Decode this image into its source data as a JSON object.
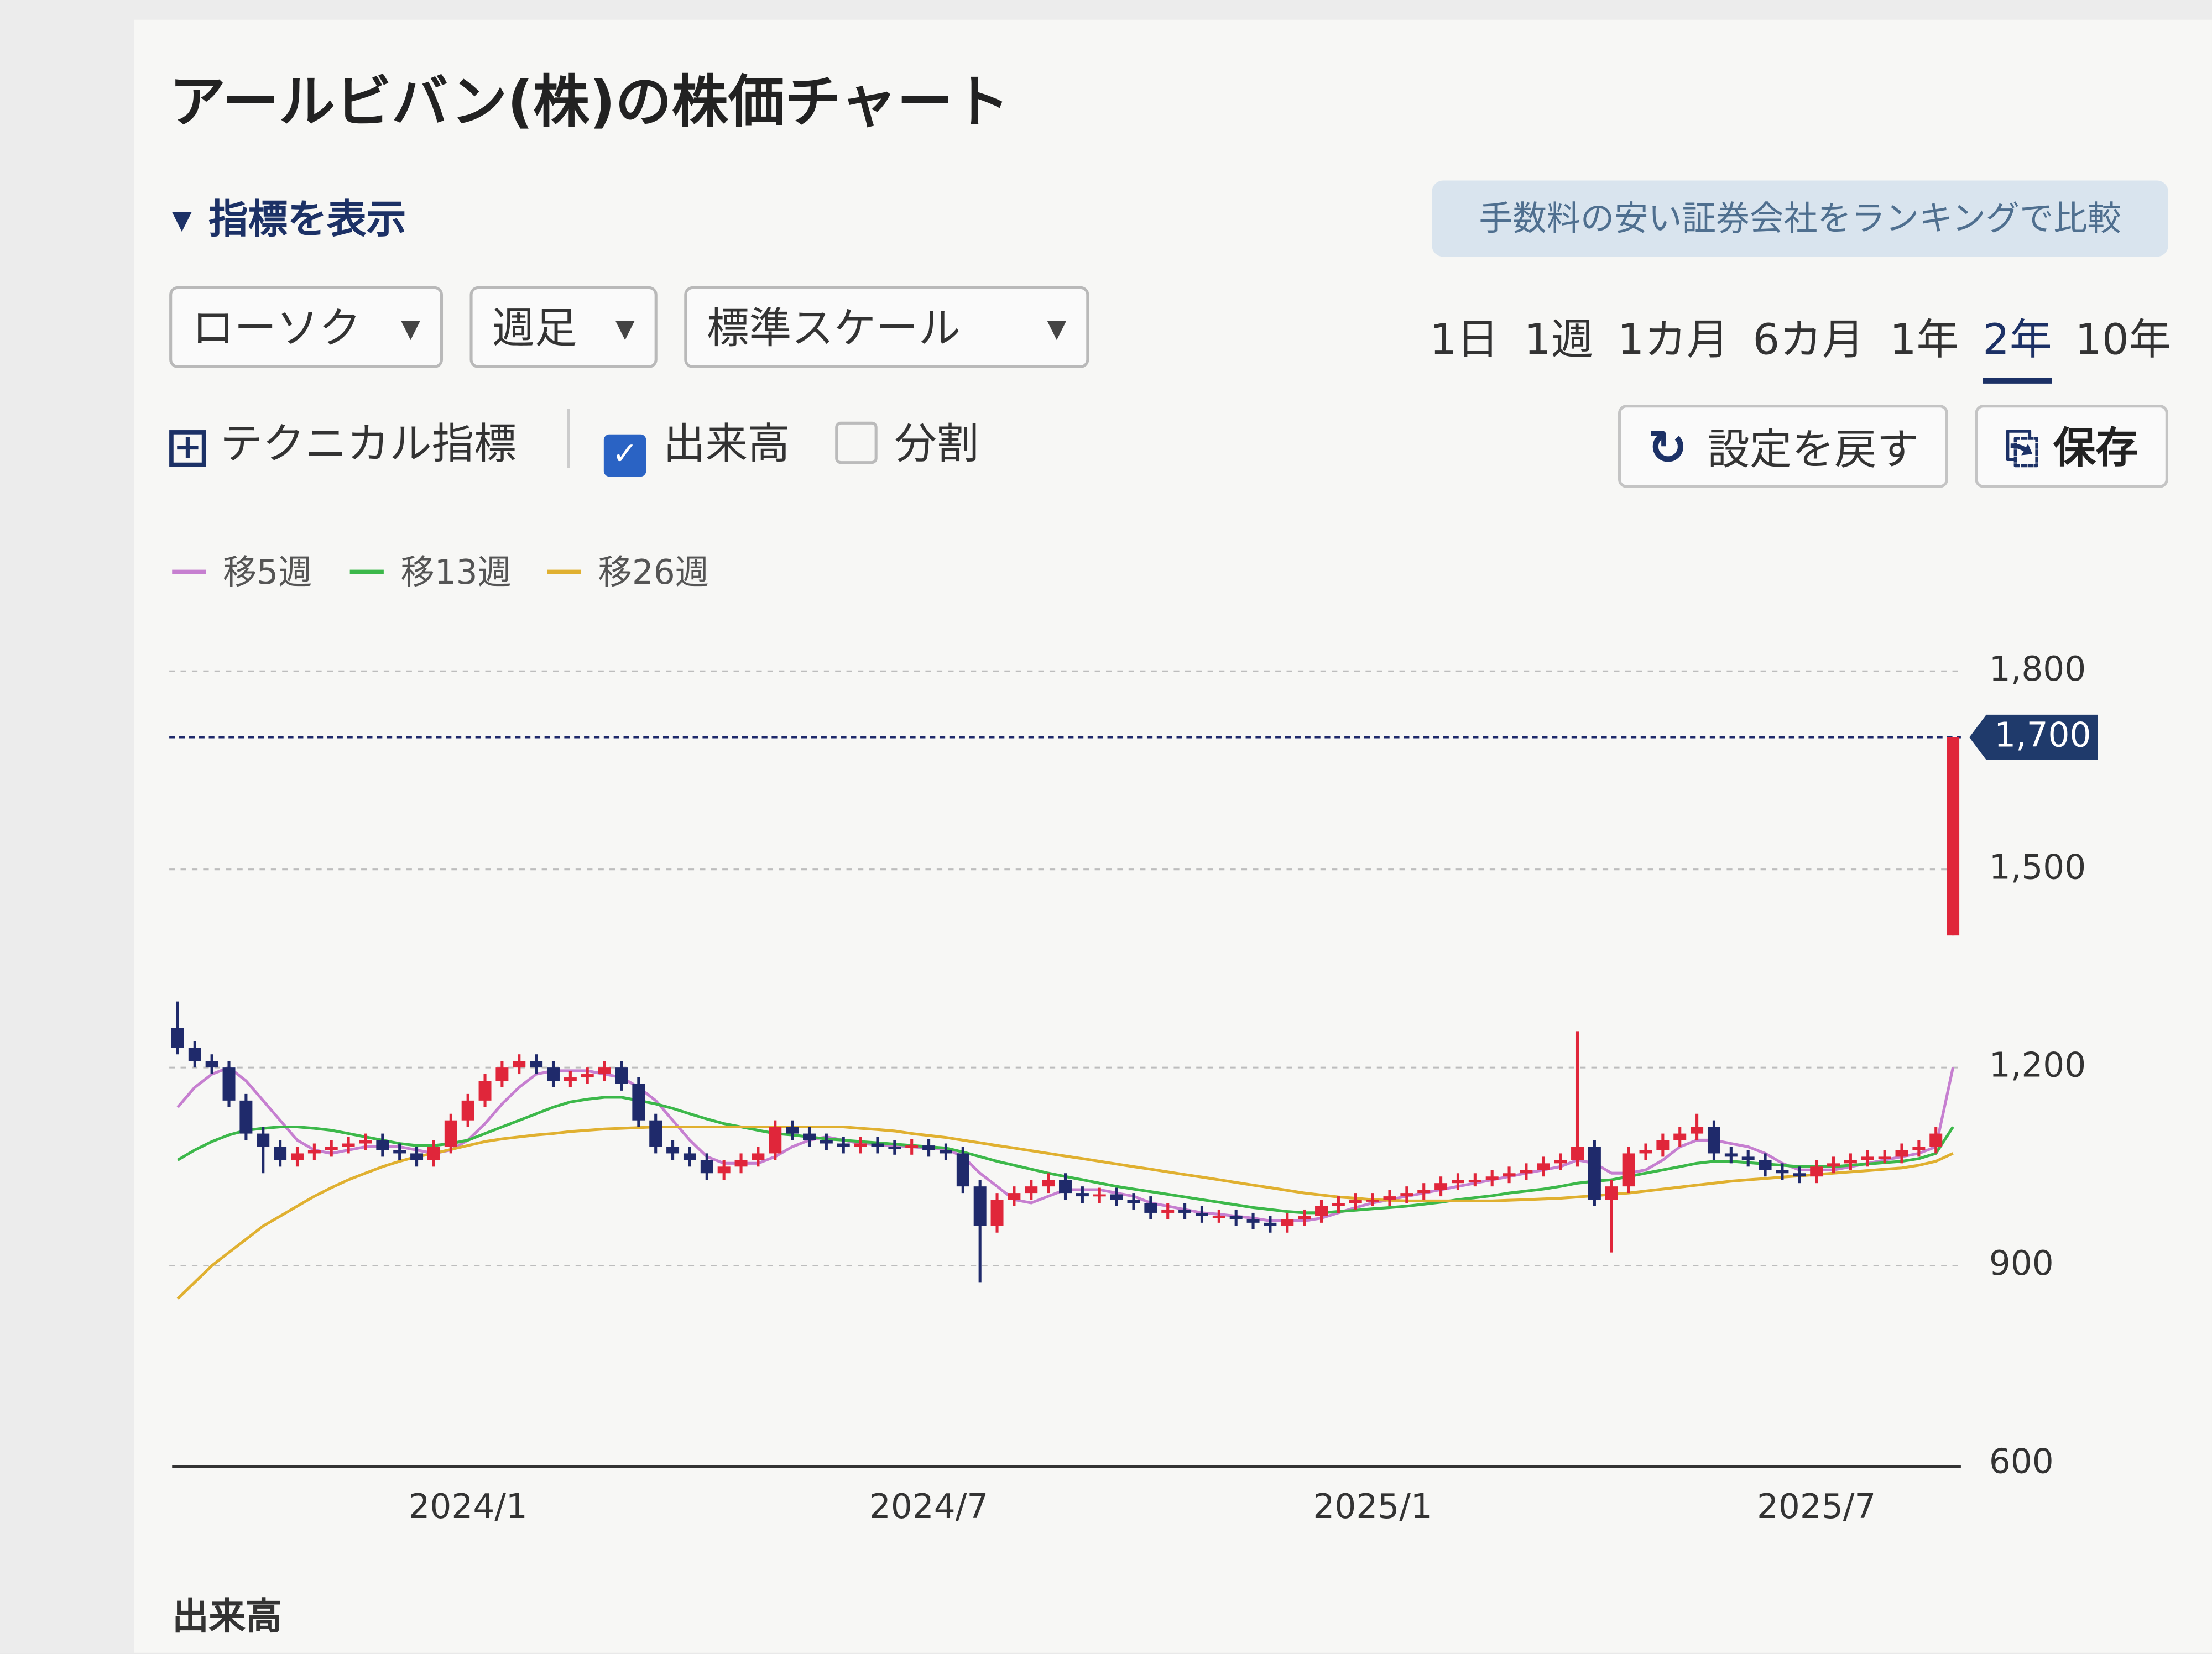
{
  "page": {
    "title": "アールビバン(株)の株価チャート",
    "indicator_toggle": "指標を表示",
    "broker_link": "手数料の安い証券会社をランキングで比較",
    "chart_style": "ローソク",
    "interval": "週足",
    "scale": "標準スケール",
    "periods": [
      "1日",
      "1週",
      "1カ月",
      "6カ月",
      "1年",
      "2年",
      "10年"
    ],
    "selected_period": 5,
    "technical_button": "テクニカル指標",
    "volume_checkbox": {
      "label": "出来高",
      "checked": true
    },
    "split_checkbox": {
      "label": "分割",
      "checked": false
    },
    "reset_button": "設定を戻す",
    "save_button": "保存",
    "volume_heading": "出来高"
  },
  "chart_data": {
    "type": "candlestick",
    "up_color": "#e0263a",
    "down_color": "#1f2a6b",
    "grid": true,
    "ylim": [
      600,
      1850
    ],
    "yticks": [
      600,
      900,
      {
        "value": 1200,
        "label": "1,200"
      },
      {
        "value": 1500,
        "label": "1,500"
      },
      {
        "value": 1800,
        "label": "1,800"
      }
    ],
    "last_price": {
      "value": 1700,
      "label": "1,700"
    },
    "categories": [
      null,
      null,
      null,
      null,
      null,
      null,
      null,
      null,
      null,
      null,
      null,
      null,
      null,
      null,
      null,
      null,
      null,
      "2024/1",
      null,
      null,
      null,
      null,
      null,
      null,
      null,
      null,
      null,
      null,
      null,
      null,
      null,
      null,
      null,
      null,
      null,
      null,
      null,
      null,
      null,
      null,
      null,
      null,
      null,
      null,
      "2024/7",
      null,
      null,
      null,
      null,
      null,
      null,
      null,
      null,
      null,
      null,
      null,
      null,
      null,
      null,
      null,
      null,
      null,
      null,
      null,
      null,
      null,
      null,
      null,
      null,
      null,
      "2025/1",
      null,
      null,
      null,
      null,
      null,
      null,
      null,
      null,
      null,
      null,
      null,
      null,
      null,
      null,
      null,
      null,
      null,
      null,
      null,
      null,
      null,
      null,
      null,
      null,
      null,
      "2025/7",
      null,
      null,
      null,
      null,
      null,
      null,
      null,
      null
    ],
    "open": [
      1260,
      1230,
      1210,
      1200,
      1150,
      1100,
      1080,
      1060,
      1070,
      1075,
      1080,
      1085,
      1090,
      1075,
      1070,
      1060,
      1080,
      1120,
      1150,
      1180,
      1200,
      1210,
      1200,
      1180,
      1185,
      1190,
      1200,
      1175,
      1120,
      1080,
      1070,
      1060,
      1040,
      1050,
      1060,
      1070,
      1110,
      1100,
      1090,
      1085,
      1080,
      1085,
      1080,
      1078,
      1082,
      1075,
      1070,
      1020,
      960,
      1000,
      1010,
      1020,
      1030,
      1010,
      1005,
      1008,
      1000,
      995,
      980,
      985,
      980,
      975,
      975,
      970,
      965,
      960,
      970,
      975,
      990,
      995,
      1000,
      1000,
      1005,
      1010,
      1015,
      1025,
      1030,
      1030,
      1035,
      1040,
      1045,
      1055,
      1060,
      1080,
      1000,
      1020,
      1070,
      1075,
      1090,
      1100,
      1110,
      1070,
      1065,
      1060,
      1045,
      1040,
      1035,
      1050,
      1055,
      1060,
      1065,
      1065,
      1075,
      1080,
      1400
    ],
    "high": [
      1300,
      1240,
      1220,
      1210,
      1160,
      1110,
      1090,
      1080,
      1085,
      1090,
      1095,
      1100,
      1100,
      1085,
      1080,
      1090,
      1130,
      1160,
      1190,
      1210,
      1220,
      1220,
      1210,
      1195,
      1200,
      1210,
      1210,
      1185,
      1130,
      1090,
      1080,
      1070,
      1060,
      1070,
      1080,
      1120,
      1120,
      1110,
      1100,
      1095,
      1095,
      1095,
      1090,
      1092,
      1092,
      1085,
      1080,
      1030,
      1010,
      1020,
      1030,
      1040,
      1040,
      1020,
      1018,
      1018,
      1010,
      1005,
      995,
      995,
      990,
      985,
      985,
      980,
      975,
      980,
      985,
      1000,
      1005,
      1010,
      1010,
      1015,
      1020,
      1025,
      1035,
      1040,
      1040,
      1045,
      1050,
      1055,
      1065,
      1070,
      1255,
      1090,
      1030,
      1080,
      1085,
      1100,
      1110,
      1130,
      1120,
      1080,
      1075,
      1070,
      1055,
      1050,
      1060,
      1065,
      1070,
      1075,
      1075,
      1085,
      1090,
      1110,
      1700
    ],
    "low": [
      1220,
      1200,
      1190,
      1140,
      1090,
      1040,
      1050,
      1050,
      1060,
      1065,
      1070,
      1075,
      1065,
      1060,
      1050,
      1050,
      1070,
      1110,
      1140,
      1170,
      1190,
      1190,
      1170,
      1170,
      1175,
      1180,
      1165,
      1110,
      1070,
      1060,
      1050,
      1030,
      1030,
      1040,
      1050,
      1060,
      1090,
      1080,
      1075,
      1070,
      1070,
      1070,
      1068,
      1068,
      1065,
      1060,
      1010,
      875,
      950,
      990,
      1000,
      1010,
      1000,
      995,
      995,
      990,
      985,
      970,
      970,
      970,
      965,
      965,
      960,
      955,
      950,
      950,
      960,
      965,
      980,
      985,
      990,
      990,
      995,
      1000,
      1005,
      1015,
      1020,
      1020,
      1025,
      1030,
      1035,
      1045,
      1050,
      990,
      920,
      1010,
      1060,
      1065,
      1080,
      1090,
      1060,
      1055,
      1050,
      1035,
      1030,
      1025,
      1025,
      1040,
      1045,
      1050,
      1055,
      1055,
      1065,
      1070,
      1400
    ],
    "close": [
      1230,
      1210,
      1200,
      1150,
      1100,
      1080,
      1060,
      1070,
      1075,
      1080,
      1085,
      1090,
      1075,
      1070,
      1060,
      1080,
      1120,
      1150,
      1180,
      1200,
      1210,
      1200,
      1180,
      1185,
      1190,
      1200,
      1175,
      1120,
      1080,
      1070,
      1060,
      1040,
      1050,
      1060,
      1070,
      1110,
      1100,
      1090,
      1085,
      1080,
      1085,
      1080,
      1078,
      1082,
      1075,
      1070,
      1020,
      960,
      1000,
      1010,
      1020,
      1030,
      1010,
      1005,
      1008,
      1000,
      995,
      980,
      985,
      980,
      975,
      975,
      970,
      965,
      960,
      970,
      975,
      990,
      995,
      1000,
      1000,
      1005,
      1010,
      1015,
      1025,
      1030,
      1030,
      1035,
      1040,
      1045,
      1055,
      1060,
      1080,
      1000,
      1020,
      1070,
      1075,
      1090,
      1100,
      1110,
      1070,
      1065,
      1060,
      1045,
      1040,
      1035,
      1050,
      1055,
      1060,
      1065,
      1065,
      1075,
      1080,
      1100,
      1700
    ],
    "moving_averages": [
      {
        "name": "移5週",
        "color": "#c67fd0",
        "values": [
          1140,
          1170,
          1190,
          1200,
          1180,
          1150,
          1120,
          1090,
          1075,
          1070,
          1075,
          1080,
          1080,
          1080,
          1075,
          1070,
          1075,
          1090,
          1115,
          1145,
          1170,
          1190,
          1195,
          1195,
          1195,
          1190,
          1185,
          1170,
          1150,
          1120,
          1090,
          1065,
          1055,
          1055,
          1055,
          1065,
          1080,
          1090,
          1095,
          1090,
          1085,
          1083,
          1082,
          1080,
          1078,
          1077,
          1065,
          1040,
          1020,
          1000,
          995,
          1005,
          1015,
          1015,
          1015,
          1010,
          1005,
          995,
          990,
          985,
          980,
          978,
          975,
          972,
          968,
          968,
          968,
          972,
          980,
          988,
          995,
          1000,
          1005,
          1010,
          1015,
          1020,
          1025,
          1030,
          1035,
          1040,
          1045,
          1050,
          1060,
          1055,
          1040,
          1040,
          1045,
          1060,
          1080,
          1090,
          1090,
          1085,
          1080,
          1070,
          1055,
          1045,
          1045,
          1045,
          1050,
          1055,
          1060,
          1065,
          1070,
          1080,
          1200
        ]
      },
      {
        "name": "移13週",
        "color": "#3cb84a",
        "values": [
          1060,
          1075,
          1088,
          1098,
          1105,
          1108,
          1110,
          1110,
          1108,
          1105,
          1100,
          1095,
          1090,
          1085,
          1082,
          1082,
          1085,
          1090,
          1100,
          1110,
          1120,
          1130,
          1140,
          1148,
          1152,
          1155,
          1155,
          1150,
          1145,
          1138,
          1130,
          1122,
          1115,
          1110,
          1105,
          1100,
          1098,
          1095,
          1092,
          1090,
          1088,
          1086,
          1084,
          1082,
          1080,
          1078,
          1072,
          1065,
          1058,
          1052,
          1046,
          1040,
          1035,
          1030,
          1025,
          1020,
          1016,
          1012,
          1008,
          1004,
          1000,
          996,
          992,
          988,
          985,
          982,
          980,
          980,
          982,
          984,
          986,
          988,
          990,
          993,
          996,
          1000,
          1003,
          1006,
          1010,
          1013,
          1016,
          1020,
          1025,
          1028,
          1030,
          1035,
          1040,
          1045,
          1050,
          1055,
          1058,
          1058,
          1056,
          1054,
          1052,
          1050,
          1050,
          1050,
          1052,
          1054,
          1056,
          1058,
          1062,
          1070,
          1110
        ]
      },
      {
        "name": "移26週",
        "color": "#e0b030",
        "values": [
          850,
          875,
          900,
          920,
          940,
          960,
          975,
          990,
          1005,
          1018,
          1030,
          1040,
          1050,
          1058,
          1065,
          1070,
          1076,
          1082,
          1088,
          1092,
          1095,
          1098,
          1100,
          1103,
          1105,
          1107,
          1108,
          1109,
          1110,
          1110,
          1110,
          1110,
          1110,
          1110,
          1110,
          1110,
          1110,
          1110,
          1110,
          1110,
          1108,
          1106,
          1104,
          1100,
          1097,
          1094,
          1090,
          1086,
          1082,
          1078,
          1074,
          1070,
          1066,
          1062,
          1058,
          1054,
          1050,
          1046,
          1042,
          1038,
          1034,
          1030,
          1026,
          1022,
          1018,
          1014,
          1010,
          1007,
          1004,
          1002,
          1000,
          999,
          998,
          998,
          998,
          998,
          998,
          998,
          999,
          1000,
          1001,
          1002,
          1004,
          1006,
          1008,
          1010,
          1013,
          1016,
          1019,
          1022,
          1025,
          1028,
          1030,
          1032,
          1034,
          1036,
          1038,
          1040,
          1042,
          1044,
          1046,
          1048,
          1052,
          1058,
          1070
        ]
      }
    ]
  }
}
